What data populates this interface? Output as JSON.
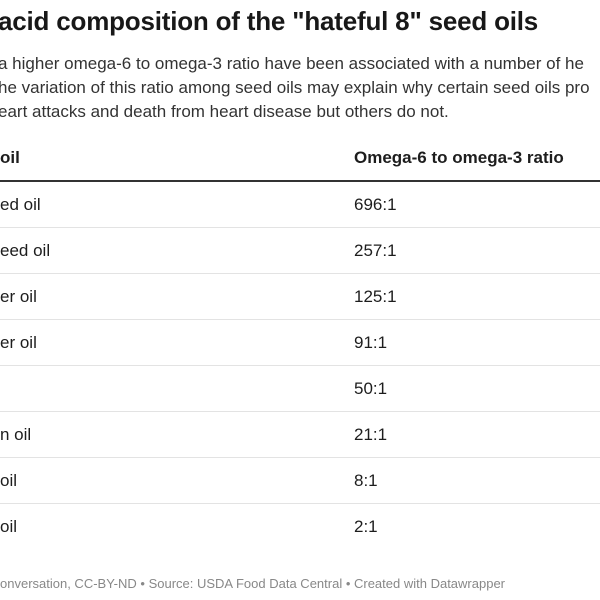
{
  "title": "acid composition of the \"hateful 8\" seed oils",
  "description": [
    "a higher omega-6 to omega-3 ratio have been associated with a number of he",
    "he variation of this ratio among seed oils may explain why certain seed oils pro",
    "eart attacks and death from heart disease but others do not."
  ],
  "table": {
    "headers": [
      "oil",
      "Omega-6 to omega-3 ratio"
    ],
    "rows": [
      {
        "oil": "ed oil",
        "ratio": "696:1"
      },
      {
        "oil": "eed oil",
        "ratio": "257:1"
      },
      {
        "oil": "er oil",
        "ratio": "125:1"
      },
      {
        "oil": "er oil",
        "ratio": "91:1"
      },
      {
        "oil": "",
        "ratio": "50:1"
      },
      {
        "oil": "n oil",
        "ratio": "21:1"
      },
      {
        "oil": "oil",
        "ratio": "8:1"
      },
      {
        "oil": "oil",
        "ratio": "2:1"
      }
    ]
  },
  "footer": "onversation, CC-BY-ND • Source: USDA Food Data Central • Created with Datawrapper"
}
